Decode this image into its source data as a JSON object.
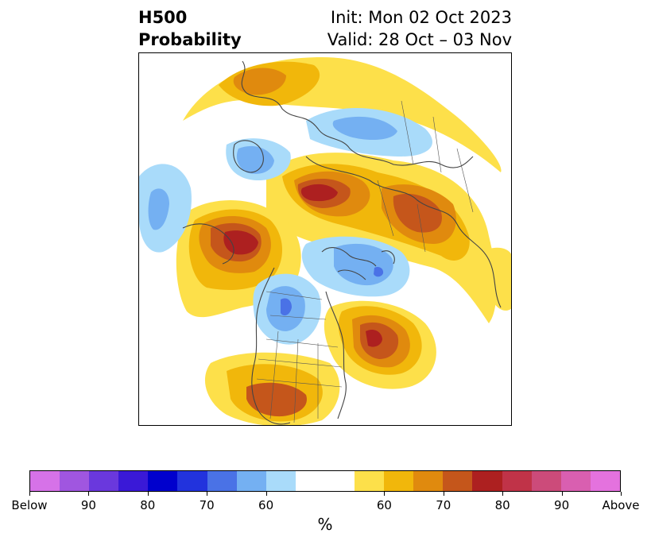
{
  "title": {
    "left_line1": "H500",
    "left_line2": "Probability",
    "right_line1": "Init: Mon 02 Oct 2023",
    "right_line2": "Valid: 28 Oct – 03 Nov"
  },
  "colorbar": {
    "unit": "%",
    "colors": [
      "#d672e8",
      "#a056e0",
      "#6a38dd",
      "#3a19d7",
      "#0000cd",
      "#2233dd",
      "#4a72e6",
      "#74b0f2",
      "#a9dbfa",
      "#ffffff",
      "#ffffff",
      "#fde04a",
      "#f1b70b",
      "#e08a0e",
      "#c5561b",
      "#ad2020",
      "#c03348",
      "#cc4b7a",
      "#d95fb0",
      "#e472de"
    ],
    "labels": [
      "Below",
      "90",
      "80",
      "70",
      "60",
      "60",
      "70",
      "80",
      "90",
      "Above"
    ]
  },
  "legend_colors": {
    "below_light": "#a9dbfa",
    "below_mid": "#74b0f2",
    "below_strong": "#4a72e6",
    "above_light": "#fde04a",
    "above_mid": "#f1b70b",
    "above_orange": "#e08a0e",
    "above_strong": "#c5561b",
    "above_red": "#ad2020"
  }
}
